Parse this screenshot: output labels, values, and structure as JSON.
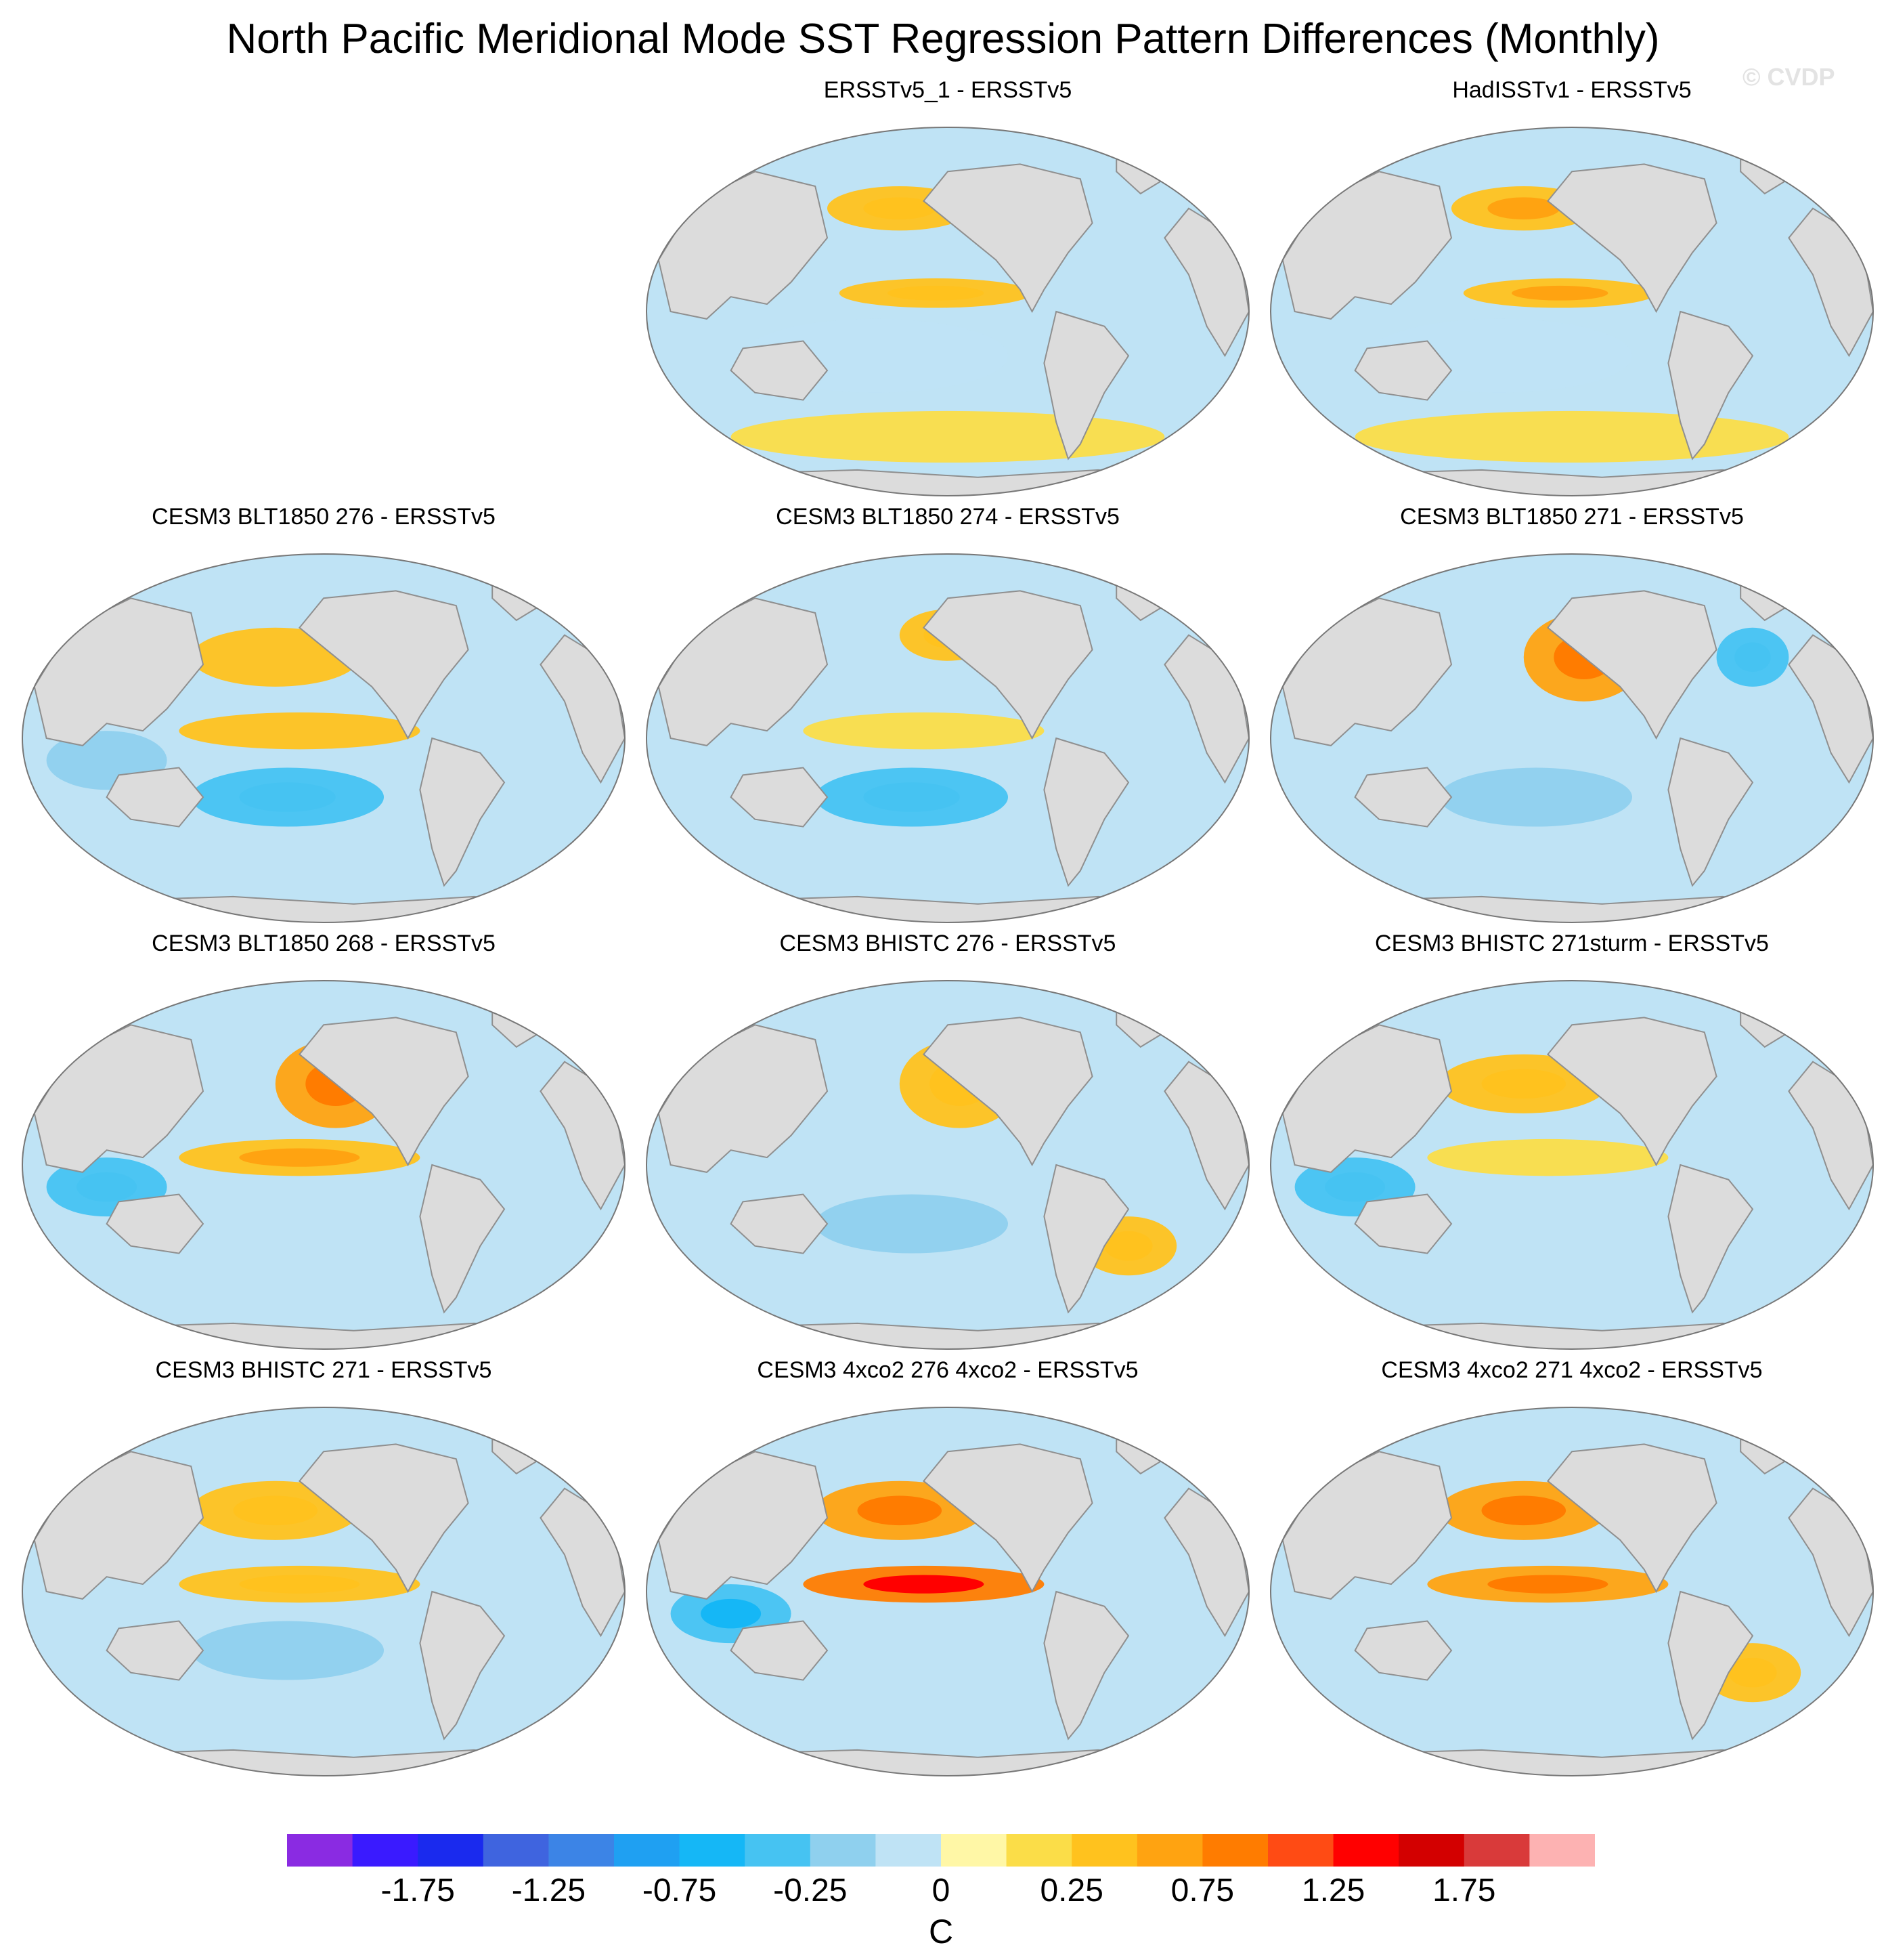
{
  "title": "North Pacific Meridional Mode SST Regression Pattern Differences (Monthly)",
  "watermark": "© CVDP",
  "chart_data": {
    "type": "heatmap",
    "projection": "Robinson (global, Pacific-centered)",
    "variable": "SST regression difference",
    "units": "C",
    "colorbar": {
      "tick_labels": [
        "-1.75",
        "-1.25",
        "-0.75",
        "-0.25",
        "0",
        "0.25",
        "0.75",
        "1.25",
        "1.75"
      ],
      "tick_values": [
        -1.75,
        -1.25,
        -0.75,
        -0.25,
        0,
        0.25,
        0.75,
        1.25,
        1.75
      ],
      "levels": [
        -2.0,
        -1.75,
        -1.5,
        -1.25,
        -1.0,
        -0.75,
        -0.5,
        -0.25,
        -0.1,
        0,
        0.1,
        0.25,
        0.5,
        0.75,
        1.0,
        1.25,
        1.5,
        1.75,
        2.0
      ],
      "colors": [
        "#8a2be2",
        "#3a1aff",
        "#1a2aee",
        "#3f64df",
        "#3c84e6",
        "#1fa0f2",
        "#15b7f6",
        "#46c3f2",
        "#8fd0ee",
        "#bfe3f5",
        "#fff7a6",
        "#fbdd48",
        "#ffc21e",
        "#ffa311",
        "#ff7c00",
        "#ff4b14",
        "#ff0000",
        "#d30000",
        "#d93a3a",
        "#fdb2b2"
      ]
    },
    "panels": [
      {
        "title": "ERSSTv5_1 - ERSSTv5",
        "anomalies": [
          {
            "region": "North Pacific ~40N",
            "sign": "+",
            "level": 0.3
          },
          {
            "region": "Central equatorial Pacific",
            "sign": "+",
            "level": 0.3
          },
          {
            "region": "Southern Ocean",
            "sign": "+",
            "level": 0.1
          },
          {
            "region": "Tropical/Subtropical ocean",
            "sign": "-",
            "level": -0.1
          }
        ]
      },
      {
        "title": "HadISSTv1 - ERSSTv5",
        "anomalies": [
          {
            "region": "North Pacific ~40N",
            "sign": "+",
            "level": 0.4
          },
          {
            "region": "Central equatorial Pacific",
            "sign": "+",
            "level": 0.4
          },
          {
            "region": "Southern Ocean",
            "sign": "+",
            "level": 0.1
          },
          {
            "region": "Tropical/Subtropical ocean",
            "sign": "-",
            "level": -0.1
          }
        ]
      },
      {
        "title": "CESM3 BLT1850 276 - ERSSTv5",
        "anomalies": [
          {
            "region": "North Pacific",
            "sign": "+",
            "level": 0.25
          },
          {
            "region": "Equatorial Pacific",
            "sign": "+",
            "level": 0.25
          },
          {
            "region": "South Pacific",
            "sign": "-",
            "level": -0.3
          },
          {
            "region": "Indian Ocean",
            "sign": "-",
            "level": -0.2
          }
        ]
      },
      {
        "title": "CESM3 BLT1850 274 - ERSSTv5",
        "anomalies": [
          {
            "region": "Gulf of Alaska",
            "sign": "+",
            "level": 0.3
          },
          {
            "region": "Equatorial Pacific",
            "sign": "+",
            "level": 0.2
          },
          {
            "region": "South Pacific",
            "sign": "-",
            "level": -0.3
          }
        ]
      },
      {
        "title": "CESM3 BLT1850 271 - ERSSTv5",
        "anomalies": [
          {
            "region": "Northeast Pacific",
            "sign": "+",
            "level": 0.5
          },
          {
            "region": "North Atlantic",
            "sign": "-",
            "level": -0.3
          },
          {
            "region": "South Pacific",
            "sign": "-",
            "level": -0.2
          }
        ]
      },
      {
        "title": "CESM3 BLT1850 268 - ERSSTv5",
        "anomalies": [
          {
            "region": "Northeast Pacific",
            "sign": "+",
            "level": 0.5
          },
          {
            "region": "Equatorial Pacific",
            "sign": "+",
            "level": 0.4
          },
          {
            "region": "Indian Ocean",
            "sign": "-",
            "level": -0.3
          }
        ]
      },
      {
        "title": "CESM3 BHISTC 276 - ERSSTv5",
        "anomalies": [
          {
            "region": "Northeast Pacific",
            "sign": "+",
            "level": 0.3
          },
          {
            "region": "South Atlantic",
            "sign": "+",
            "level": 0.3
          },
          {
            "region": "South Pacific",
            "sign": "-",
            "level": -0.2
          }
        ]
      },
      {
        "title": "CESM3 BHISTC 271sturm - ERSSTv5",
        "anomalies": [
          {
            "region": "North Pacific",
            "sign": "+",
            "level": 0.3
          },
          {
            "region": "Equatorial Pacific",
            "sign": "+",
            "level": 0.2
          },
          {
            "region": "Indian Ocean",
            "sign": "-",
            "level": -0.3
          }
        ]
      },
      {
        "title": "CESM3 BHISTC 271 - ERSSTv5",
        "anomalies": [
          {
            "region": "North Pacific",
            "sign": "+",
            "level": 0.3
          },
          {
            "region": "Equatorial Pacific",
            "sign": "+",
            "level": 0.3
          },
          {
            "region": "South Pacific",
            "sign": "-",
            "level": -0.2
          }
        ]
      },
      {
        "title": "CESM3 4xco2 276 4xco2 - ERSSTv5",
        "anomalies": [
          {
            "region": "North Pacific",
            "sign": "+",
            "level": 0.6
          },
          {
            "region": "Equatorial Pacific",
            "sign": "+",
            "level": 0.8
          },
          {
            "region": "Indian Ocean",
            "sign": "-",
            "level": -0.4
          }
        ]
      },
      {
        "title": "CESM3 4xco2 271 4xco2 - ERSSTv5",
        "anomalies": [
          {
            "region": "North Pacific",
            "sign": "+",
            "level": 0.6
          },
          {
            "region": "Equatorial Pacific",
            "sign": "+",
            "level": 0.5
          },
          {
            "region": "South Atlantic",
            "sign": "+",
            "level": 0.3
          }
        ]
      }
    ]
  }
}
